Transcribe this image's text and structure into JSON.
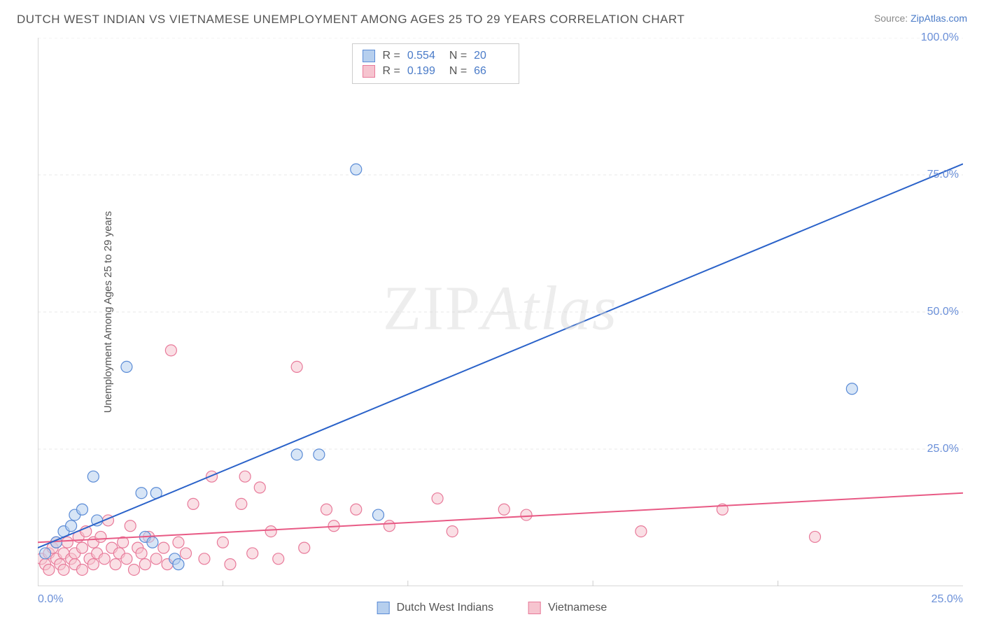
{
  "title": "DUTCH WEST INDIAN VS VIETNAMESE UNEMPLOYMENT AMONG AGES 25 TO 29 YEARS CORRELATION CHART",
  "source": {
    "prefix": "Source: ",
    "name": "ZipAtlas.com"
  },
  "watermark": {
    "zip": "ZIP",
    "atlas": "Atlas"
  },
  "yaxis_label": "Unemployment Among Ages 25 to 29 years",
  "chart": {
    "type": "scatter",
    "xlim": [
      0,
      25
    ],
    "ylim": [
      0,
      100
    ],
    "x_ticks": [
      0,
      25
    ],
    "x_tick_labels": [
      "0.0%",
      "25.0%"
    ],
    "y_ticks": [
      25,
      50,
      75,
      100
    ],
    "y_tick_labels": [
      "25.0%",
      "50.0%",
      "75.0%",
      "100.0%"
    ],
    "x_minor_gridlines": [
      5,
      10,
      15,
      20
    ],
    "y_gridlines": [
      25,
      50,
      75,
      100
    ],
    "background_color": "#ffffff",
    "grid_color": "#e7e7e7",
    "axis_color": "#cccccc",
    "tick_label_color": "#6a8fd8",
    "axis_label_color": "#555555",
    "marker_radius": 8,
    "marker_opacity": 0.55,
    "line_width": 2
  },
  "series": {
    "dutch": {
      "label": "Dutch West Indians",
      "fill": "#b6cfee",
      "stroke": "#5a8bd6",
      "line_color": "#2a62c9",
      "R": "0.554",
      "N": "20",
      "trend": {
        "x1": 0,
        "y1": 7,
        "x2": 25,
        "y2": 77
      },
      "points": [
        [
          0.2,
          6
        ],
        [
          0.5,
          8
        ],
        [
          0.7,
          10
        ],
        [
          0.9,
          11
        ],
        [
          1.0,
          13
        ],
        [
          1.2,
          14
        ],
        [
          1.5,
          20
        ],
        [
          1.6,
          12
        ],
        [
          2.4,
          40
        ],
        [
          2.8,
          17
        ],
        [
          2.9,
          9
        ],
        [
          3.1,
          8
        ],
        [
          3.2,
          17
        ],
        [
          3.7,
          5
        ],
        [
          3.8,
          4
        ],
        [
          7.0,
          24
        ],
        [
          7.6,
          24
        ],
        [
          8.6,
          76
        ],
        [
          9.2,
          13
        ],
        [
          22.0,
          36
        ]
      ]
    },
    "viet": {
      "label": "Vietnamese",
      "fill": "#f6c4cf",
      "stroke": "#e87a9a",
      "line_color": "#e85a85",
      "R": "0.199",
      "N": "66",
      "trend": {
        "x1": 0,
        "y1": 8,
        "x2": 25,
        "y2": 17
      },
      "points": [
        [
          0.1,
          5
        ],
        [
          0.2,
          4
        ],
        [
          0.3,
          6
        ],
        [
          0.3,
          3
        ],
        [
          0.4,
          7
        ],
        [
          0.5,
          5
        ],
        [
          0.5,
          8
        ],
        [
          0.6,
          4
        ],
        [
          0.7,
          6
        ],
        [
          0.7,
          3
        ],
        [
          0.8,
          8
        ],
        [
          0.9,
          5
        ],
        [
          1.0,
          6
        ],
        [
          1.0,
          4
        ],
        [
          1.1,
          9
        ],
        [
          1.2,
          7
        ],
        [
          1.2,
          3
        ],
        [
          1.3,
          10
        ],
        [
          1.4,
          5
        ],
        [
          1.5,
          8
        ],
        [
          1.5,
          4
        ],
        [
          1.6,
          6
        ],
        [
          1.7,
          9
        ],
        [
          1.8,
          5
        ],
        [
          1.9,
          12
        ],
        [
          2.0,
          7
        ],
        [
          2.1,
          4
        ],
        [
          2.2,
          6
        ],
        [
          2.3,
          8
        ],
        [
          2.4,
          5
        ],
        [
          2.5,
          11
        ],
        [
          2.6,
          3
        ],
        [
          2.7,
          7
        ],
        [
          2.8,
          6
        ],
        [
          2.9,
          4
        ],
        [
          3.0,
          9
        ],
        [
          3.2,
          5
        ],
        [
          3.4,
          7
        ],
        [
          3.5,
          4
        ],
        [
          3.6,
          43
        ],
        [
          3.8,
          8
        ],
        [
          4.0,
          6
        ],
        [
          4.2,
          15
        ],
        [
          4.5,
          5
        ],
        [
          4.7,
          20
        ],
        [
          5.0,
          8
        ],
        [
          5.2,
          4
        ],
        [
          5.5,
          15
        ],
        [
          5.6,
          20
        ],
        [
          5.8,
          6
        ],
        [
          6.0,
          18
        ],
        [
          6.3,
          10
        ],
        [
          6.5,
          5
        ],
        [
          7.0,
          40
        ],
        [
          7.2,
          7
        ],
        [
          7.8,
          14
        ],
        [
          8.0,
          11
        ],
        [
          8.6,
          14
        ],
        [
          9.5,
          11
        ],
        [
          10.8,
          16
        ],
        [
          11.2,
          10
        ],
        [
          12.6,
          14
        ],
        [
          13.2,
          13
        ],
        [
          16.3,
          10
        ],
        [
          18.5,
          14
        ],
        [
          21.0,
          9
        ]
      ]
    }
  },
  "stats_box": {
    "rows": [
      {
        "series": "dutch",
        "r_label": "R =",
        "n_label": "N ="
      },
      {
        "series": "viet",
        "r_label": "R =",
        "n_label": "N ="
      }
    ]
  }
}
